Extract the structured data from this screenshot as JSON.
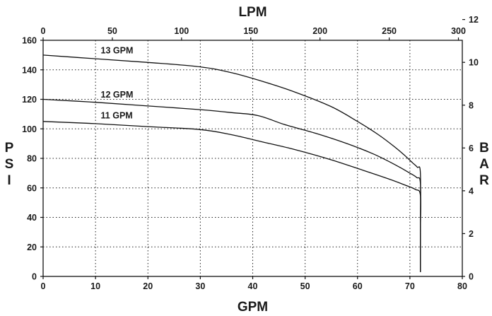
{
  "chart_data": {
    "type": "line",
    "title": "",
    "top_axis": {
      "label": "LPM",
      "ticks": [
        "0",
        "50",
        "100",
        "150",
        "200",
        "250",
        "300"
      ],
      "values": [
        0,
        50,
        100,
        150,
        200,
        250,
        300
      ],
      "range": [
        0,
        302.8
      ]
    },
    "bottom_axis": {
      "label": "GPM",
      "ticks": [
        "0",
        "10",
        "20",
        "30",
        "40",
        "50",
        "60",
        "70",
        "80"
      ],
      "values": [
        0,
        10,
        20,
        30,
        40,
        50,
        60,
        70,
        80
      ],
      "range": [
        0,
        80
      ]
    },
    "left_axis": {
      "label": "PSI",
      "letters": [
        "P",
        "S",
        "I"
      ],
      "ticks": [
        "0",
        "20",
        "40",
        "60",
        "80",
        "100",
        "120",
        "140",
        "160"
      ],
      "values": [
        0,
        20,
        40,
        60,
        80,
        100,
        120,
        140,
        160
      ],
      "range": [
        0,
        160
      ]
    },
    "right_axis": {
      "label": "BAR",
      "letters": [
        "B",
        "A",
        "R"
      ],
      "ticks": [
        "0",
        "2",
        "4",
        "6",
        "8",
        "10",
        "12"
      ],
      "values": [
        0,
        2,
        4,
        6,
        8,
        10,
        12
      ],
      "range": [
        0,
        11.03
      ]
    },
    "grid": true,
    "series": [
      {
        "name": "13 GPM",
        "x": [
          0,
          10,
          20,
          30,
          36,
          42,
          48,
          55,
          60,
          64,
          67,
          69,
          70.5,
          71.4,
          72,
          72,
          72
        ],
        "y": [
          150,
          147.5,
          145,
          142,
          138,
          132,
          125,
          115,
          105,
          96,
          88,
          82,
          77,
          74,
          70,
          30,
          3
        ]
      },
      {
        "name": "12 GPM",
        "x": [
          0,
          10,
          20,
          30,
          36,
          41,
          46,
          52,
          58,
          63,
          67,
          70,
          71.3,
          72,
          72,
          72
        ],
        "y": [
          120,
          118,
          115.5,
          113,
          111,
          109,
          103,
          97,
          90,
          83,
          76,
          70,
          67,
          63,
          30,
          3
        ]
      },
      {
        "name": "11 GPM",
        "x": [
          0,
          10,
          20,
          30,
          36,
          42,
          48,
          55,
          61,
          66,
          69,
          71,
          72,
          72,
          72
        ],
        "y": [
          105,
          103.5,
          101.5,
          99.5,
          96,
          91,
          86,
          79,
          72,
          66,
          62,
          59,
          55,
          30,
          3
        ]
      }
    ]
  }
}
